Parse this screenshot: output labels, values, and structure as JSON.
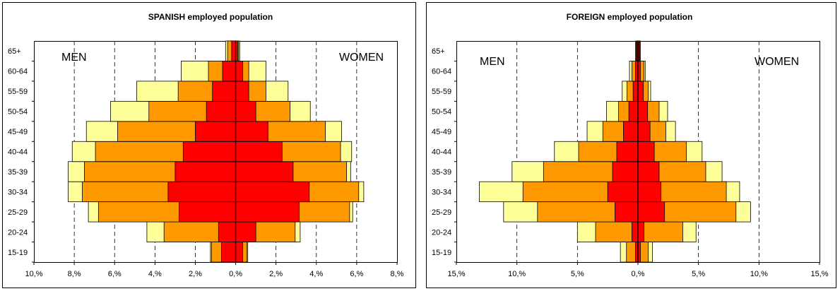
{
  "chart_data": [
    {
      "type": "bar",
      "orientation": "horizontal",
      "stacked": true,
      "title": "SPANISH employed population",
      "left_label": "MEN",
      "right_label": "WOMEN",
      "categories": [
        "15-19",
        "20-24",
        "25-29",
        "30-34",
        "35-39",
        "40-44",
        "45-49",
        "50-54",
        "55-59",
        "60-64",
        "65+"
      ],
      "xlim": [
        -10,
        8
      ],
      "xticks": [
        -10,
        -8,
        -6,
        -4,
        -2,
        0,
        2,
        4,
        6,
        8
      ],
      "xtick_labels": [
        "10,%",
        "8,%",
        "6,%",
        "4,%",
        "2,%",
        "0,%",
        "2,%",
        "4,%",
        "6,%",
        "8,%"
      ],
      "gridlines": [
        -8,
        -6,
        -4,
        -2,
        2,
        4,
        6
      ],
      "layer_colors": [
        "#FF0000",
        "#FF9900",
        "#FFFF99"
      ],
      "men": [
        [
          0.7,
          1.2,
          1.25
        ],
        [
          0.85,
          3.55,
          4.4
        ],
        [
          2.8,
          6.8,
          7.3
        ],
        [
          3.35,
          7.6,
          8.3
        ],
        [
          3.0,
          7.5,
          8.3
        ],
        [
          2.6,
          6.95,
          8.1
        ],
        [
          2.0,
          5.85,
          7.4
        ],
        [
          1.45,
          4.3,
          6.2
        ],
        [
          1.15,
          2.85,
          4.9
        ],
        [
          0.65,
          1.35,
          2.7
        ],
        [
          0.2,
          0.4,
          0.5
        ]
      ],
      "women": [
        [
          0.35,
          0.55,
          0.6
        ],
        [
          1.0,
          2.95,
          3.2
        ],
        [
          3.15,
          5.65,
          5.8
        ],
        [
          3.65,
          6.1,
          6.35
        ],
        [
          2.85,
          5.5,
          5.7
        ],
        [
          2.3,
          5.2,
          5.75
        ],
        [
          1.6,
          4.45,
          5.25
        ],
        [
          1.0,
          2.7,
          3.7
        ],
        [
          0.65,
          1.5,
          2.6
        ],
        [
          0.35,
          0.65,
          1.5
        ],
        [
          0.1,
          0.15,
          0.2
        ]
      ]
    },
    {
      "type": "bar",
      "orientation": "horizontal",
      "stacked": true,
      "title": "FOREIGN employed population",
      "left_label": "MEN",
      "right_label": "WOMEN",
      "categories": [
        "15-19",
        "20-24",
        "25-29",
        "30-34",
        "35-39",
        "40-44",
        "45-49",
        "50-54",
        "55-59",
        "60-64",
        "65+"
      ],
      "xlim": [
        -15,
        15
      ],
      "xticks": [
        -15,
        -10,
        -5,
        0,
        5,
        10,
        15
      ],
      "xtick_labels": [
        "15,%",
        "10,%",
        "5,%",
        "0,%",
        "5,%",
        "10,%",
        "15,%"
      ],
      "gridlines": [
        -10,
        -5,
        5,
        10
      ],
      "layer_colors": [
        "#FF0000",
        "#FF9900",
        "#FFFF99"
      ],
      "men": [
        [
          0.2,
          0.95,
          1.45
        ],
        [
          0.5,
          3.5,
          5.0
        ],
        [
          1.9,
          8.3,
          11.1
        ],
        [
          2.5,
          9.5,
          13.1
        ],
        [
          2.1,
          7.8,
          10.4
        ],
        [
          1.75,
          4.9,
          6.9
        ],
        [
          1.2,
          2.9,
          4.2
        ],
        [
          0.75,
          1.6,
          2.6
        ],
        [
          0.4,
          0.9,
          1.3
        ],
        [
          0.2,
          0.5,
          0.7
        ],
        [
          0.1,
          0.15,
          0.2
        ]
      ],
      "women": [
        [
          0.2,
          0.85,
          1.2
        ],
        [
          0.5,
          3.7,
          4.8
        ],
        [
          2.2,
          8.1,
          9.3
        ],
        [
          1.9,
          7.3,
          8.4
        ],
        [
          1.75,
          5.6,
          6.95
        ],
        [
          1.35,
          4.0,
          5.3
        ],
        [
          1.0,
          2.3,
          3.1
        ],
        [
          0.8,
          1.75,
          2.45
        ],
        [
          0.45,
          0.85,
          1.05
        ],
        [
          0.2,
          0.5,
          0.6
        ],
        [
          0.1,
          0.15,
          0.2
        ]
      ]
    }
  ]
}
